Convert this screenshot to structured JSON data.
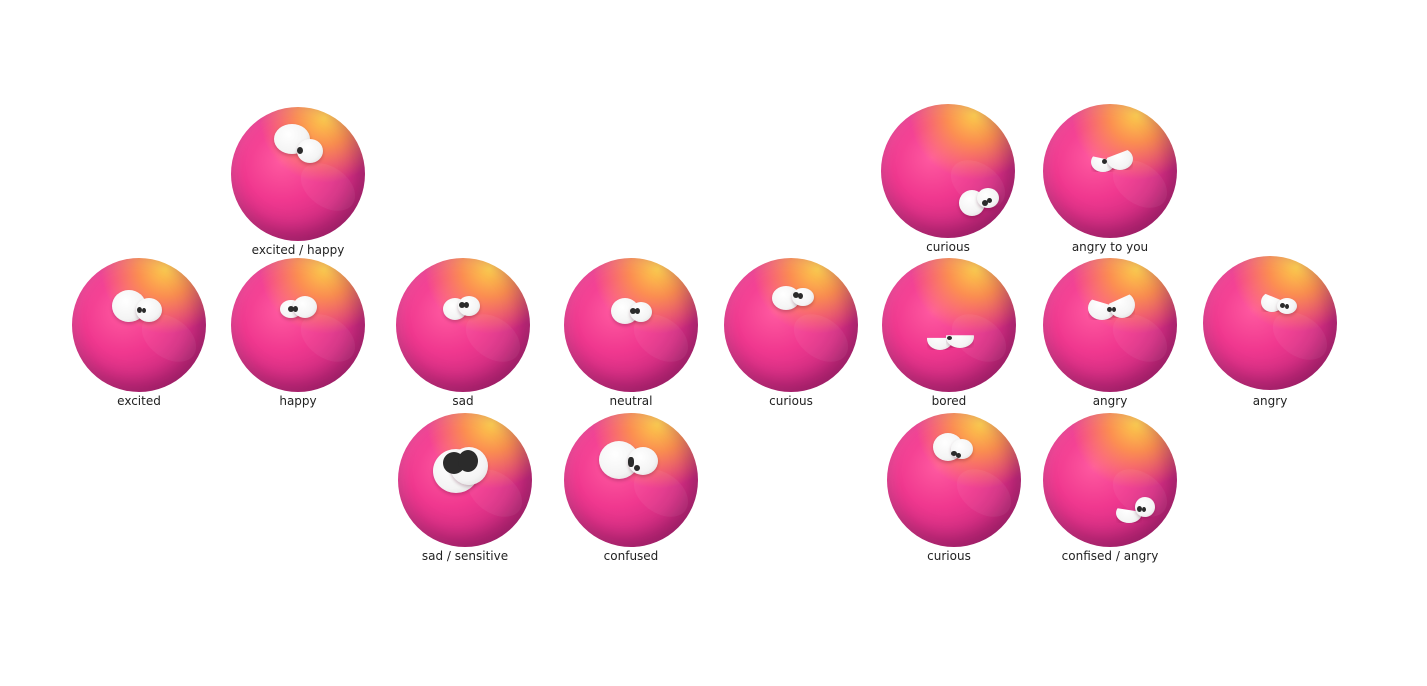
{
  "emotions": [
    {
      "label": "excited / happy"
    },
    {
      "label": "curious"
    },
    {
      "label": "angry to you"
    },
    {
      "label": "excited"
    },
    {
      "label": "happy"
    },
    {
      "label": "sad"
    },
    {
      "label": "neutral"
    },
    {
      "label": "curious"
    },
    {
      "label": "bored"
    },
    {
      "label": "angry"
    },
    {
      "label": "angry"
    },
    {
      "label": "sad / sensitive"
    },
    {
      "label": "confused"
    },
    {
      "label": "curious"
    },
    {
      "label": "confised / angry"
    }
  ],
  "colors": {
    "ball_top": "#ffc23a",
    "ball_mid": "#f0388f",
    "ball_edge": "#9e2270",
    "eye": "#ffffff",
    "pupil": "#2b2b2b"
  }
}
